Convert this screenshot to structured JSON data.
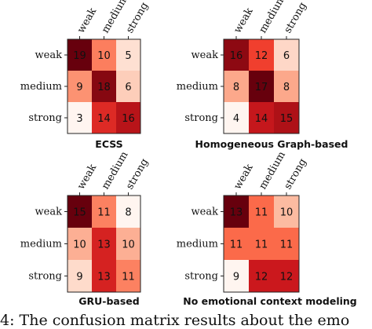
{
  "chart_data": [
    {
      "type": "heatmap",
      "title": "ECSS",
      "x_categories": [
        "weak",
        "medium",
        "strong"
      ],
      "y_categories": [
        "weak",
        "medium",
        "strong"
      ],
      "values": [
        [
          19,
          10,
          5
        ],
        [
          9,
          18,
          6
        ],
        [
          3,
          14,
          16
        ]
      ],
      "colormap": "Reds"
    },
    {
      "type": "heatmap",
      "title": "Homogeneous Graph-based",
      "x_categories": [
        "weak",
        "medium",
        "strong"
      ],
      "y_categories": [
        "weak",
        "medium",
        "strong"
      ],
      "values": [
        [
          16,
          12,
          6
        ],
        [
          8,
          17,
          8
        ],
        [
          4,
          14,
          15
        ]
      ],
      "colormap": "Reds"
    },
    {
      "type": "heatmap",
      "title": "GRU-based",
      "x_categories": [
        "weak",
        "medium",
        "strong"
      ],
      "y_categories": [
        "weak",
        "medium",
        "strong"
      ],
      "values": [
        [
          15,
          11,
          8
        ],
        [
          10,
          13,
          10
        ],
        [
          9,
          13,
          11
        ]
      ],
      "colormap": "Reds"
    },
    {
      "type": "heatmap",
      "title": "No emotional context modeling",
      "x_categories": [
        "weak",
        "medium",
        "strong"
      ],
      "y_categories": [
        "weak",
        "medium",
        "strong"
      ],
      "values": [
        [
          13,
          11,
          10
        ],
        [
          11,
          11,
          11
        ],
        [
          9,
          12,
          12
        ]
      ],
      "colormap": "Reds"
    }
  ],
  "caption": "4: The confusion matrix results about the emo"
}
